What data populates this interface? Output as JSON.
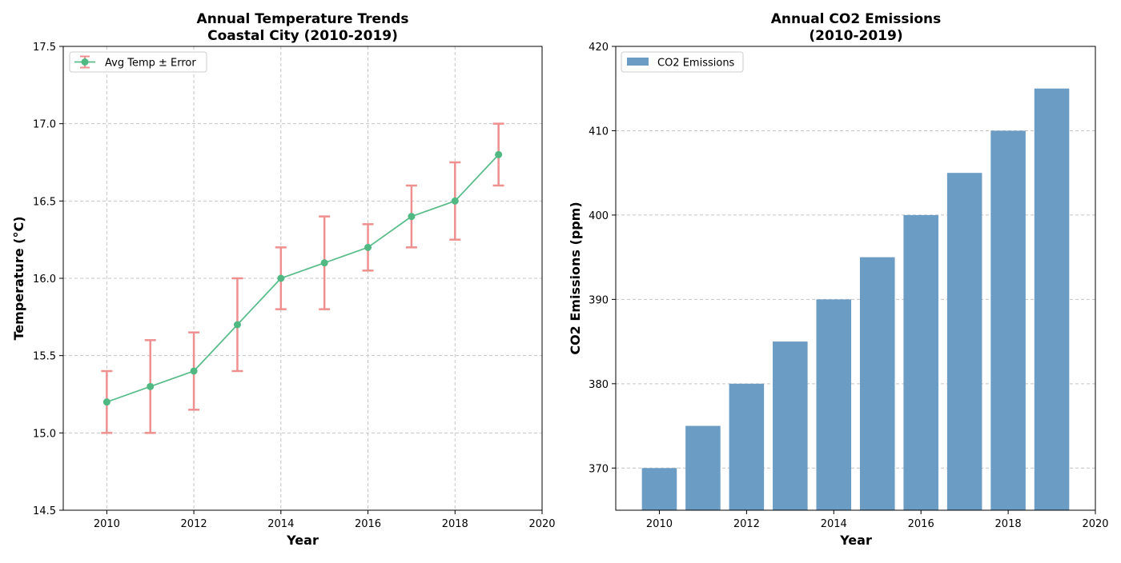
{
  "chart_data": [
    {
      "type": "line",
      "title": "Annual Temperature Trends",
      "subtitle": "Coastal City (2010-2019)",
      "xlabel": "Year",
      "ylabel": "Temperature (°C)",
      "xlim": [
        2009,
        2020
      ],
      "ylim": [
        14.5,
        17.5
      ],
      "xticks": [
        "2010",
        "2012",
        "2014",
        "2016",
        "2018",
        "2020"
      ],
      "yticks": [
        "14.5",
        "15.0",
        "15.5",
        "16.0",
        "16.5",
        "17.0",
        "17.5"
      ],
      "grid": true,
      "legend_position": "upper-left",
      "series": [
        {
          "name": "Avg Temp ± Error",
          "x": [
            2010,
            2011,
            2012,
            2013,
            2014,
            2015,
            2016,
            2017,
            2018,
            2019
          ],
          "y": [
            15.2,
            15.3,
            15.4,
            15.7,
            16.0,
            16.1,
            16.2,
            16.4,
            16.5,
            16.8
          ],
          "error": [
            0.2,
            0.3,
            0.25,
            0.3,
            0.2,
            0.3,
            0.15,
            0.2,
            0.25,
            0.2
          ],
          "line_color": "#5cbd8c",
          "error_color": "#ee9090"
        }
      ]
    },
    {
      "type": "bar",
      "title": "Annual CO2 Emissions",
      "subtitle": "(2010-2019)",
      "xlabel": "Year",
      "ylabel": "CO2 Emissions (ppm)",
      "xlim": [
        2009,
        2020
      ],
      "ylim": [
        365,
        420
      ],
      "xticks": [
        "2010",
        "2012",
        "2014",
        "2016",
        "2018",
        "2020"
      ],
      "yticks": [
        "370",
        "380",
        "390",
        "400",
        "410",
        "420"
      ],
      "grid": "y",
      "legend_position": "upper-left",
      "series": [
        {
          "name": "CO2 Emissions",
          "x": [
            2010,
            2011,
            2012,
            2013,
            2014,
            2015,
            2016,
            2017,
            2018,
            2019
          ],
          "values": [
            370,
            375,
            380,
            385,
            390,
            395,
            400,
            405,
            410,
            415
          ],
          "color": "#6b9cc4"
        }
      ]
    }
  ]
}
